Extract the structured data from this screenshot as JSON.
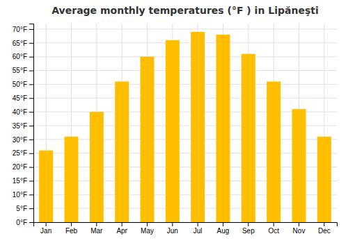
{
  "chart_data": {
    "type": "bar",
    "title": "Average monthly temperatures (°F ) in Lipăneşti",
    "categories": [
      "Jan",
      "Feb",
      "Mar",
      "Apr",
      "May",
      "Jun",
      "Jul",
      "Aug",
      "Sep",
      "Oct",
      "Nov",
      "Dec"
    ],
    "values": [
      26,
      31,
      40,
      51,
      60,
      66,
      69,
      68,
      61,
      51,
      41,
      31
    ],
    "color": "#FFBE00",
    "ylim": [
      0,
      72
    ],
    "yticks": [
      {
        "value": 0,
        "label": "0°F"
      },
      {
        "value": 5,
        "label": "5°F"
      },
      {
        "value": 10,
        "label": "10°F"
      },
      {
        "value": 15,
        "label": "15°F"
      },
      {
        "value": 20,
        "label": "20°F"
      },
      {
        "value": 25,
        "label": "25°F"
      },
      {
        "value": 30,
        "label": "30°F"
      },
      {
        "value": 35,
        "label": "35°F"
      },
      {
        "value": 40,
        "label": "40°F"
      },
      {
        "value": 45,
        "label": "45°F"
      },
      {
        "value": 50,
        "label": "50°F"
      },
      {
        "value": 55,
        "label": "55°F"
      },
      {
        "value": 60,
        "label": "60°F"
      },
      {
        "value": 65,
        "label": "65°F"
      },
      {
        "value": 70,
        "label": "70°F"
      }
    ],
    "grid": true
  }
}
